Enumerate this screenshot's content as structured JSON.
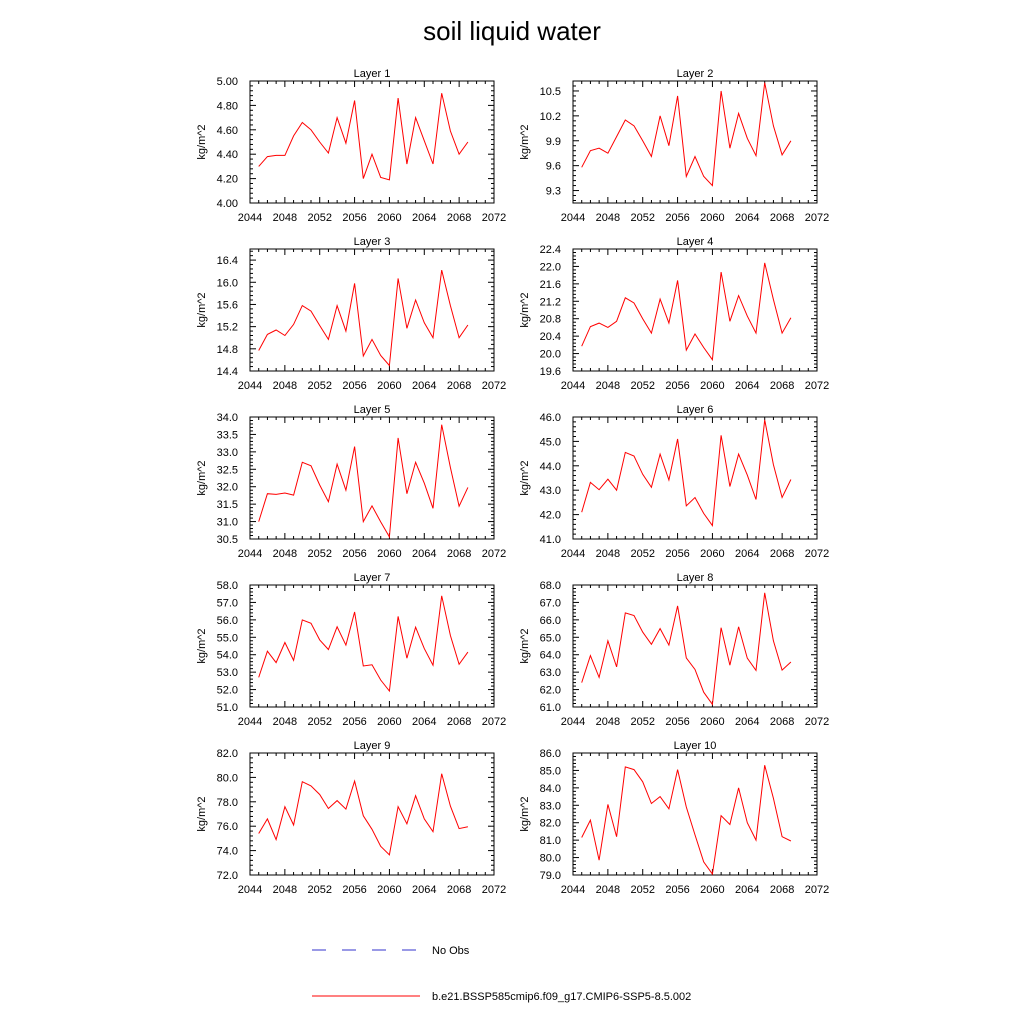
{
  "figure": {
    "title": "soil liquid water",
    "legend": [
      {
        "label": "No Obs",
        "color": "#3333cc",
        "style": "dashed"
      },
      {
        "label": "b.e21.BSSP585cmip6.f09_g17.CMIP6-SSP5-8.5.002",
        "color": "#ff0000",
        "style": "solid"
      }
    ]
  },
  "chart_data": [
    {
      "type": "line",
      "title": "Layer 1",
      "ylabel": "kg/m^2",
      "xlim": [
        2044,
        2072
      ],
      "xticks": [
        "2044",
        "2048",
        "2052",
        "2056",
        "2060",
        "2064",
        "2068",
        "2072"
      ],
      "ylim": [
        4.0,
        5.0
      ],
      "yticks": [
        "4.00",
        "4.20",
        "4.40",
        "4.60",
        "4.80",
        "5.00"
      ],
      "x": [
        2045,
        2046,
        2047,
        2048,
        2049,
        2050,
        2051,
        2052,
        2053,
        2054,
        2055,
        2056,
        2057,
        2058,
        2059,
        2060,
        2061,
        2062,
        2063,
        2064,
        2065,
        2066,
        2067,
        2068,
        2069
      ],
      "series": [
        {
          "color": "#ff0000",
          "values": [
            4.3,
            4.38,
            4.39,
            4.39,
            4.55,
            4.66,
            4.6,
            4.5,
            4.41,
            4.7,
            4.49,
            4.84,
            4.2,
            4.4,
            4.21,
            4.19,
            4.86,
            4.32,
            4.7,
            4.51,
            4.32,
            4.9,
            4.59,
            4.4,
            4.5
          ]
        }
      ]
    },
    {
      "type": "line",
      "title": "Layer 2",
      "ylabel": "kg/m^2",
      "xlim": [
        2044,
        2072
      ],
      "xticks": [
        "2044",
        "2048",
        "2052",
        "2056",
        "2060",
        "2064",
        "2068",
        "2072"
      ],
      "ylim": [
        9.15,
        10.62
      ],
      "yticks": [
        "9.3",
        "9.6",
        "9.9",
        "10.2",
        "10.5"
      ],
      "x": [
        2045,
        2046,
        2047,
        2048,
        2049,
        2050,
        2051,
        2052,
        2053,
        2054,
        2055,
        2056,
        2057,
        2058,
        2059,
        2060,
        2061,
        2062,
        2063,
        2064,
        2065,
        2066,
        2067,
        2068,
        2069
      ],
      "series": [
        {
          "color": "#ff0000",
          "values": [
            9.58,
            9.78,
            9.81,
            9.75,
            9.95,
            10.15,
            10.08,
            9.9,
            9.71,
            10.2,
            9.84,
            10.44,
            9.47,
            9.71,
            9.47,
            9.36,
            10.5,
            9.81,
            10.23,
            9.93,
            9.72,
            10.6,
            10.08,
            9.73,
            9.9
          ]
        }
      ]
    },
    {
      "type": "line",
      "title": "Layer 3",
      "ylabel": "kg/m^2",
      "xlim": [
        2044,
        2072
      ],
      "xticks": [
        "2044",
        "2048",
        "2052",
        "2056",
        "2060",
        "2064",
        "2068",
        "2072"
      ],
      "ylim": [
        14.4,
        16.6
      ],
      "yticks": [
        "14.4",
        "14.8",
        "15.2",
        "15.6",
        "16.0",
        "16.4"
      ],
      "x": [
        2045,
        2046,
        2047,
        2048,
        2049,
        2050,
        2051,
        2052,
        2053,
        2054,
        2055,
        2056,
        2057,
        2058,
        2059,
        2060,
        2061,
        2062,
        2063,
        2064,
        2065,
        2066,
        2067,
        2068,
        2069
      ],
      "series": [
        {
          "color": "#ff0000",
          "values": [
            14.77,
            15.06,
            15.14,
            15.04,
            15.24,
            15.58,
            15.48,
            15.22,
            14.97,
            15.58,
            15.12,
            15.98,
            14.67,
            14.97,
            14.68,
            14.5,
            16.07,
            15.17,
            15.68,
            15.27,
            15.0,
            16.22,
            15.58,
            15.0,
            15.23
          ]
        }
      ]
    },
    {
      "type": "line",
      "title": "Layer 4",
      "ylabel": "kg/m^2",
      "xlim": [
        2044,
        2072
      ],
      "xticks": [
        "2044",
        "2048",
        "2052",
        "2056",
        "2060",
        "2064",
        "2068",
        "2072"
      ],
      "ylim": [
        19.6,
        22.4
      ],
      "yticks": [
        "19.6",
        "20.0",
        "20.4",
        "20.8",
        "21.2",
        "21.6",
        "22.0",
        "22.4"
      ],
      "x": [
        2045,
        2046,
        2047,
        2048,
        2049,
        2050,
        2051,
        2052,
        2053,
        2054,
        2055,
        2056,
        2057,
        2058,
        2059,
        2060,
        2061,
        2062,
        2063,
        2064,
        2065,
        2066,
        2067,
        2068,
        2069
      ],
      "series": [
        {
          "color": "#ff0000",
          "values": [
            20.17,
            20.62,
            20.7,
            20.6,
            20.74,
            21.28,
            21.16,
            20.8,
            20.47,
            21.25,
            20.7,
            21.68,
            20.08,
            20.45,
            20.14,
            19.86,
            21.87,
            20.74,
            21.33,
            20.86,
            20.47,
            22.08,
            21.24,
            20.47,
            20.82
          ]
        }
      ]
    },
    {
      "type": "line",
      "title": "Layer 5",
      "ylabel": "kg/m^2",
      "xlim": [
        2044,
        2072
      ],
      "xticks": [
        "2044",
        "2048",
        "2052",
        "2056",
        "2060",
        "2064",
        "2068",
        "2072"
      ],
      "ylim": [
        30.5,
        34.0
      ],
      "yticks": [
        "30.5",
        "31.0",
        "31.5",
        "32.0",
        "32.5",
        "33.0",
        "33.5",
        "34.0"
      ],
      "x": [
        2045,
        2046,
        2047,
        2048,
        2049,
        2050,
        2051,
        2052,
        2053,
        2054,
        2055,
        2056,
        2057,
        2058,
        2059,
        2060,
        2061,
        2062,
        2063,
        2064,
        2065,
        2066,
        2067,
        2068,
        2069
      ],
      "series": [
        {
          "color": "#ff0000",
          "values": [
            31.0,
            31.8,
            31.78,
            31.82,
            31.76,
            32.7,
            32.6,
            32.05,
            31.57,
            32.65,
            31.9,
            33.15,
            31.0,
            31.45,
            30.99,
            30.56,
            33.4,
            31.8,
            32.7,
            32.1,
            31.38,
            33.78,
            32.55,
            31.44,
            31.98
          ]
        }
      ]
    },
    {
      "type": "line",
      "title": "Layer 6",
      "ylabel": "kg/m^2",
      "xlim": [
        2044,
        2072
      ],
      "xticks": [
        "2044",
        "2048",
        "2052",
        "2056",
        "2060",
        "2064",
        "2068",
        "2072"
      ],
      "ylim": [
        41.0,
        46.0
      ],
      "yticks": [
        "41.0",
        "42.0",
        "43.0",
        "44.0",
        "45.0",
        "46.0"
      ],
      "x": [
        2045,
        2046,
        2047,
        2048,
        2049,
        2050,
        2051,
        2052,
        2053,
        2054,
        2055,
        2056,
        2057,
        2058,
        2059,
        2060,
        2061,
        2062,
        2063,
        2064,
        2065,
        2066,
        2067,
        2068,
        2069
      ],
      "series": [
        {
          "color": "#ff0000",
          "values": [
            42.1,
            43.32,
            43.02,
            43.45,
            43.0,
            44.55,
            44.4,
            43.65,
            43.12,
            44.48,
            43.42,
            45.1,
            42.36,
            42.7,
            42.05,
            41.55,
            45.25,
            43.15,
            44.48,
            43.62,
            42.62,
            45.88,
            44.05,
            42.7,
            43.44
          ]
        }
      ]
    },
    {
      "type": "line",
      "title": "Layer 7",
      "ylabel": "kg/m^2",
      "xlim": [
        2044,
        2072
      ],
      "xticks": [
        "2044",
        "2048",
        "2052",
        "2056",
        "2060",
        "2064",
        "2068",
        "2072"
      ],
      "ylim": [
        51.0,
        58.0
      ],
      "yticks": [
        "51.0",
        "52.0",
        "53.0",
        "54.0",
        "55.0",
        "56.0",
        "57.0",
        "58.0"
      ],
      "x": [
        2045,
        2046,
        2047,
        2048,
        2049,
        2050,
        2051,
        2052,
        2053,
        2054,
        2055,
        2056,
        2057,
        2058,
        2059,
        2060,
        2061,
        2062,
        2063,
        2064,
        2065,
        2066,
        2067,
        2068,
        2069
      ],
      "series": [
        {
          "color": "#ff0000",
          "values": [
            52.7,
            54.2,
            53.55,
            54.7,
            53.68,
            56.0,
            55.8,
            54.85,
            54.3,
            55.6,
            54.55,
            56.45,
            53.35,
            53.42,
            52.55,
            51.92,
            56.2,
            53.8,
            55.58,
            54.35,
            53.4,
            57.38,
            55.1,
            53.45,
            54.15
          ]
        }
      ]
    },
    {
      "type": "line",
      "title": "Layer 8",
      "ylabel": "kg/m^2",
      "xlim": [
        2044,
        2072
      ],
      "xticks": [
        "2044",
        "2048",
        "2052",
        "2056",
        "2060",
        "2064",
        "2068",
        "2072"
      ],
      "ylim": [
        61.0,
        68.0
      ],
      "yticks": [
        "61.0",
        "62.0",
        "63.0",
        "64.0",
        "65.0",
        "66.0",
        "67.0",
        "68.0"
      ],
      "x": [
        2045,
        2046,
        2047,
        2048,
        2049,
        2050,
        2051,
        2052,
        2053,
        2054,
        2055,
        2056,
        2057,
        2058,
        2059,
        2060,
        2061,
        2062,
        2063,
        2064,
        2065,
        2066,
        2067,
        2068,
        2069
      ],
      "series": [
        {
          "color": "#ff0000",
          "values": [
            62.4,
            63.95,
            62.7,
            64.8,
            63.3,
            66.4,
            66.25,
            65.3,
            64.6,
            65.5,
            64.55,
            66.8,
            63.82,
            63.15,
            61.85,
            61.15,
            65.55,
            63.4,
            65.6,
            63.8,
            63.1,
            67.55,
            64.8,
            63.12,
            63.58
          ]
        }
      ]
    },
    {
      "type": "line",
      "title": "Layer 9",
      "ylabel": "kg/m^2",
      "xlim": [
        2044,
        2072
      ],
      "xticks": [
        "2044",
        "2048",
        "2052",
        "2056",
        "2060",
        "2064",
        "2068",
        "2072"
      ],
      "ylim": [
        72.0,
        82.0
      ],
      "yticks": [
        "72.0",
        "74.0",
        "76.0",
        "78.0",
        "80.0",
        "82.0"
      ],
      "x": [
        2045,
        2046,
        2047,
        2048,
        2049,
        2050,
        2051,
        2052,
        2053,
        2054,
        2055,
        2056,
        2057,
        2058,
        2059,
        2060,
        2061,
        2062,
        2063,
        2064,
        2065,
        2066,
        2067,
        2068,
        2069
      ],
      "series": [
        {
          "color": "#ff0000",
          "values": [
            75.4,
            76.6,
            74.9,
            77.6,
            76.1,
            79.65,
            79.3,
            78.6,
            77.45,
            78.1,
            77.4,
            79.7,
            76.85,
            75.75,
            74.35,
            73.65,
            77.6,
            76.2,
            78.5,
            76.6,
            75.55,
            80.3,
            77.65,
            75.8,
            75.95
          ]
        }
      ]
    },
    {
      "type": "line",
      "title": "Layer 10",
      "ylabel": "kg/m^2",
      "xlim": [
        2044,
        2072
      ],
      "xticks": [
        "2044",
        "2048",
        "2052",
        "2056",
        "2060",
        "2064",
        "2068",
        "2072"
      ],
      "ylim": [
        79.0,
        86.0
      ],
      "yticks": [
        "79.0",
        "80.0",
        "81.0",
        "82.0",
        "83.0",
        "84.0",
        "85.0",
        "86.0"
      ],
      "x": [
        2045,
        2046,
        2047,
        2048,
        2049,
        2050,
        2051,
        2052,
        2053,
        2054,
        2055,
        2056,
        2057,
        2058,
        2059,
        2060,
        2061,
        2062,
        2063,
        2064,
        2065,
        2066,
        2067,
        2068,
        2069
      ],
      "series": [
        {
          "color": "#ff0000",
          "values": [
            81.15,
            82.15,
            79.85,
            83.05,
            81.2,
            85.2,
            85.05,
            84.35,
            83.1,
            83.5,
            82.8,
            85.05,
            82.9,
            81.3,
            79.75,
            79.05,
            82.4,
            81.9,
            84.0,
            82.0,
            81.0,
            85.3,
            83.4,
            81.2,
            80.95
          ]
        }
      ]
    }
  ]
}
